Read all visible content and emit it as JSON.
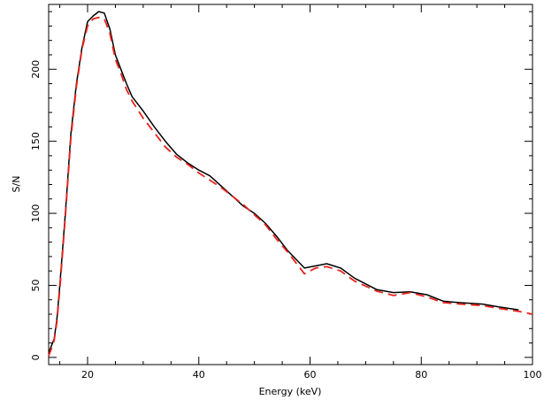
{
  "chart_data": {
    "type": "line",
    "title": "",
    "xlabel": "Energy (keV)",
    "ylabel": "S/N",
    "xlim": [
      13,
      100
    ],
    "ylim": [
      -5,
      245
    ],
    "grid": false,
    "x_ticks": [
      20,
      40,
      60,
      80,
      100
    ],
    "y_ticks": [
      0,
      50,
      100,
      150,
      200
    ],
    "series": [
      {
        "style": "solid",
        "color": "#000000",
        "x": [
          13,
          13.5,
          14,
          14.5,
          15,
          16,
          17,
          18,
          19,
          20,
          21,
          22,
          23,
          24,
          25,
          26,
          27,
          28,
          29,
          30,
          32,
          34,
          36,
          38,
          40,
          42,
          44,
          46,
          48,
          50,
          52,
          54,
          56,
          59,
          63,
          65.5,
          68,
          72,
          75,
          78,
          81,
          84,
          87,
          91,
          94,
          97.5
        ],
        "y": [
          3,
          8,
          13,
          27,
          50,
          100,
          155,
          190,
          215,
          233,
          237,
          240,
          239,
          228,
          210,
          200,
          190,
          181,
          176,
          171,
          160,
          150,
          141,
          135,
          130,
          126,
          119,
          112,
          105,
          100,
          93,
          84,
          74,
          62,
          65,
          62,
          55,
          47,
          45,
          45.5,
          43.5,
          39,
          38,
          37,
          35,
          33
        ]
      },
      {
        "style": "dashed",
        "color": "#e8231c",
        "x": [
          13,
          13.5,
          14,
          14.5,
          15,
          16,
          17,
          18,
          19,
          20,
          21,
          22,
          23,
          24,
          25,
          26,
          27,
          28,
          29,
          30,
          32,
          34,
          36,
          38,
          40,
          42,
          44,
          46,
          48,
          50,
          52,
          54,
          56,
          59,
          61,
          63,
          65.5,
          68,
          72,
          75,
          78,
          81,
          84,
          87,
          91,
          94,
          97.5,
          100
        ],
        "y": [
          1,
          6,
          12,
          25,
          47,
          98,
          152,
          188,
          214,
          230,
          235,
          236,
          235,
          225,
          207,
          197,
          186,
          178,
          172,
          166,
          156,
          146,
          139,
          134,
          128,
          123,
          118,
          112,
          106,
          99,
          92,
          82,
          73,
          58,
          62,
          63,
          60,
          53,
          46,
          43,
          45,
          42,
          38,
          37,
          36,
          34,
          32,
          30
        ]
      }
    ]
  }
}
